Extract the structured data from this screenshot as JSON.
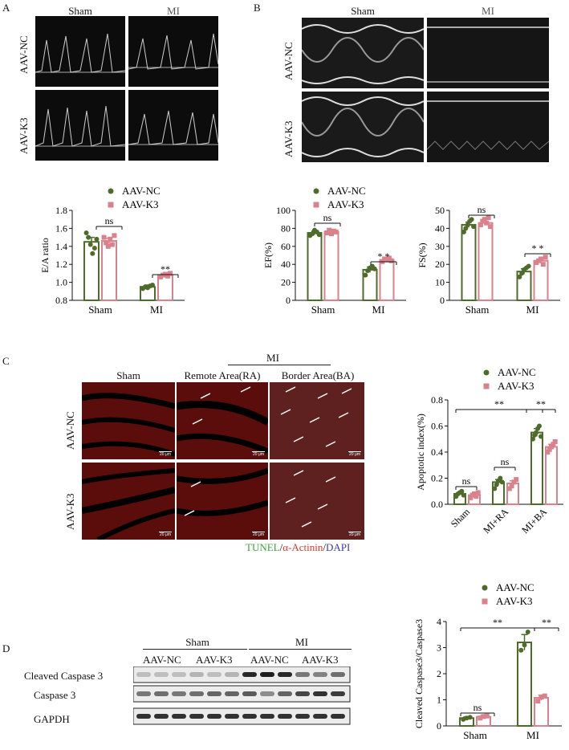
{
  "panels": {
    "A": "A",
    "B": "B",
    "C": "C",
    "D": "D"
  },
  "groups": {
    "sham": "Sham",
    "mi": "MI",
    "aav_nc": "AAV-NC",
    "aav_k3": "AAV-K3"
  },
  "panel_c": {
    "col_sham": "Sham",
    "col_ra": "Remote Area(RA)",
    "col_ba": "Border Area(BA)",
    "mi_header": "MI",
    "scale": "20 μm",
    "stain": {
      "tunel": "TUNEL",
      "slash1": "/",
      "actinin": "α-Actinin",
      "slash2": "/",
      "dapi": "DAPI"
    }
  },
  "colors": {
    "nc": "#4f6b2a",
    "k3": "#d9818c",
    "tunel": "#3aa23a",
    "actinin": "#d93a2a",
    "dapi": "#3b3bb0"
  },
  "panel_d": {
    "row1": "Cleaved Caspase 3",
    "row2": "Caspase 3",
    "row3": "GAPDH",
    "sham": "Sham",
    "mi": "MI",
    "lanes": [
      "AAV-NC",
      "AAV-K3",
      "AAV-NC",
      "AAV-K3"
    ]
  },
  "chart_data": [
    {
      "id": "ea",
      "type": "bar",
      "ylabel": "E/A ratio",
      "ylim": [
        0.8,
        1.8
      ],
      "yticks": [
        "0.8",
        "1.0",
        "1.2",
        "1.4",
        "1.6",
        "1.8"
      ],
      "categories": [
        "Sham",
        "MI"
      ],
      "series": [
        {
          "name": "AAV-NC",
          "values": [
            1.45,
            0.95
          ],
          "err": [
            0.05,
            0.02
          ],
          "points": [
            [
              1.55,
              1.5,
              1.42,
              1.32,
              1.38,
              1.48
            ],
            [
              0.93,
              0.95,
              0.94,
              0.96,
              0.97
            ]
          ]
        },
        {
          "name": "AAV-K3",
          "values": [
            1.46,
            1.08
          ],
          "err": [
            0.03,
            0.01
          ],
          "points": [
            [
              1.5,
              1.44,
              1.4,
              1.48,
              1.42,
              1.52
            ],
            [
              1.06,
              1.08,
              1.09,
              1.07,
              1.1
            ]
          ]
        }
      ],
      "annotations": [
        "ns",
        "**"
      ]
    },
    {
      "id": "ef",
      "type": "bar",
      "ylabel": "EF(%)",
      "ylim": [
        0,
        100
      ],
      "yticks": [
        "0",
        "20",
        "40",
        "60",
        "80",
        "100"
      ],
      "categories": [
        "Sham",
        "MI"
      ],
      "series": [
        {
          "name": "AAV-NC",
          "values": [
            75,
            34
          ],
          "err": [
            2,
            3
          ],
          "points": [
            [
              72,
              74,
              78,
              76,
              73
            ],
            [
              28,
              33,
              36,
              38,
              35
            ]
          ]
        },
        {
          "name": "AAV-K3",
          "values": [
            76,
            45
          ],
          "err": [
            2,
            1.5
          ],
          "points": [
            [
              75,
              78,
              74,
              77,
              76
            ],
            [
              43,
              46,
              45,
              47,
              44
            ]
          ]
        }
      ],
      "annotations": [
        "ns",
        "* *"
      ]
    },
    {
      "id": "fs",
      "type": "bar",
      "ylabel": "FS(%)",
      "ylim": [
        0,
        50
      ],
      "yticks": [
        "0",
        "10",
        "20",
        "30",
        "40",
        "50"
      ],
      "categories": [
        "Sham",
        "MI"
      ],
      "series": [
        {
          "name": "AAV-NC",
          "values": [
            42,
            16
          ],
          "err": [
            1.5,
            1.5
          ],
          "points": [
            [
              38,
              40,
              42,
              44,
              45,
              41
            ],
            [
              13,
              15,
              17,
              18,
              19
            ]
          ]
        },
        {
          "name": "AAV-K3",
          "values": [
            43,
            22
          ],
          "err": [
            1,
            1
          ],
          "points": [
            [
              42,
              44,
              45,
              43,
              46,
              41
            ],
            [
              21,
              22,
              23,
              20,
              24
            ]
          ]
        }
      ],
      "annotations": [
        "ns",
        "* *"
      ]
    },
    {
      "id": "apop",
      "type": "bar",
      "ylabel": "Apoptotic index(%)",
      "ylim": [
        0,
        0.8
      ],
      "yticks": [
        "0.0",
        "0.2",
        "0.4",
        "0.6",
        "0.8"
      ],
      "categories": [
        "Sham",
        "MI+RA",
        "MI+BA"
      ],
      "series": [
        {
          "name": "AAV-NC",
          "values": [
            0.08,
            0.17,
            0.55
          ],
          "err": [
            0.01,
            0.02,
            0.03
          ],
          "points": [
            [
              0.06,
              0.08,
              0.09,
              0.1,
              0.07
            ],
            [
              0.12,
              0.15,
              0.18,
              0.2,
              0.17
            ],
            [
              0.5,
              0.53,
              0.55,
              0.58,
              0.6,
              0.52
            ]
          ]
        },
        {
          "name": "AAV-K3",
          "values": [
            0.07,
            0.16,
            0.44
          ],
          "err": [
            0.01,
            0.02,
            0.02
          ],
          "points": [
            [
              0.05,
              0.07,
              0.08,
              0.06,
              0.09
            ],
            [
              0.12,
              0.14,
              0.17,
              0.19
            ],
            [
              0.4,
              0.42,
              0.44,
              0.46,
              0.48
            ]
          ]
        }
      ],
      "annotations": [
        "ns",
        "ns",
        "**",
        "**"
      ]
    },
    {
      "id": "casp",
      "type": "bar",
      "ylabel": "Cleaved Caspase3/Caspase3",
      "ylim": [
        0,
        4
      ],
      "yticks": [
        "0",
        "1",
        "2",
        "3",
        "4"
      ],
      "categories": [
        "Sham",
        "MI"
      ],
      "series": [
        {
          "name": "AAV-NC",
          "values": [
            0.3,
            3.2
          ],
          "err": [
            0.05,
            0.3
          ],
          "points": [
            [
              0.25,
              0.3,
              0.33
            ],
            [
              2.9,
              3.1,
              3.6
            ]
          ]
        },
        {
          "name": "AAV-K3",
          "values": [
            0.35,
            1.08
          ],
          "err": [
            0.05,
            0.1
          ],
          "points": [
            [
              0.3,
              0.36,
              0.38
            ],
            [
              0.95,
              1.1,
              1.15
            ]
          ]
        }
      ],
      "annotations": [
        "ns",
        "**",
        "**"
      ]
    }
  ]
}
